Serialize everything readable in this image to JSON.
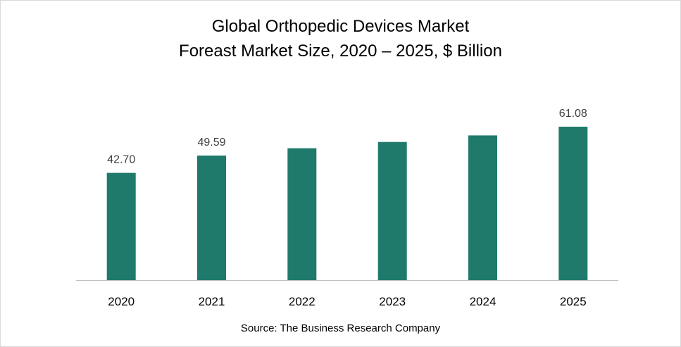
{
  "chart_data": {
    "type": "bar",
    "title": "Global Orthopedic Devices Market",
    "subtitle": "Foreast Market Size, 2020 – 2025, $ Billion",
    "categories": [
      "2020",
      "2021",
      "2022",
      "2023",
      "2024",
      "2025"
    ],
    "values": [
      42.7,
      49.59,
      52.5,
      55.0,
      57.6,
      61.08
    ],
    "data_labels": [
      "42.70",
      "49.59",
      "",
      "",
      "",
      "61.08"
    ],
    "xlabel": "",
    "ylabel": "",
    "ylim": [
      0,
      70
    ],
    "grid": false,
    "legend": "none",
    "bar_color": "#1f7a6c",
    "axis_color": "#bfbfbf",
    "label_color": "#404040",
    "tick_color": "#000000",
    "source": "Source: The Business Research Company"
  }
}
